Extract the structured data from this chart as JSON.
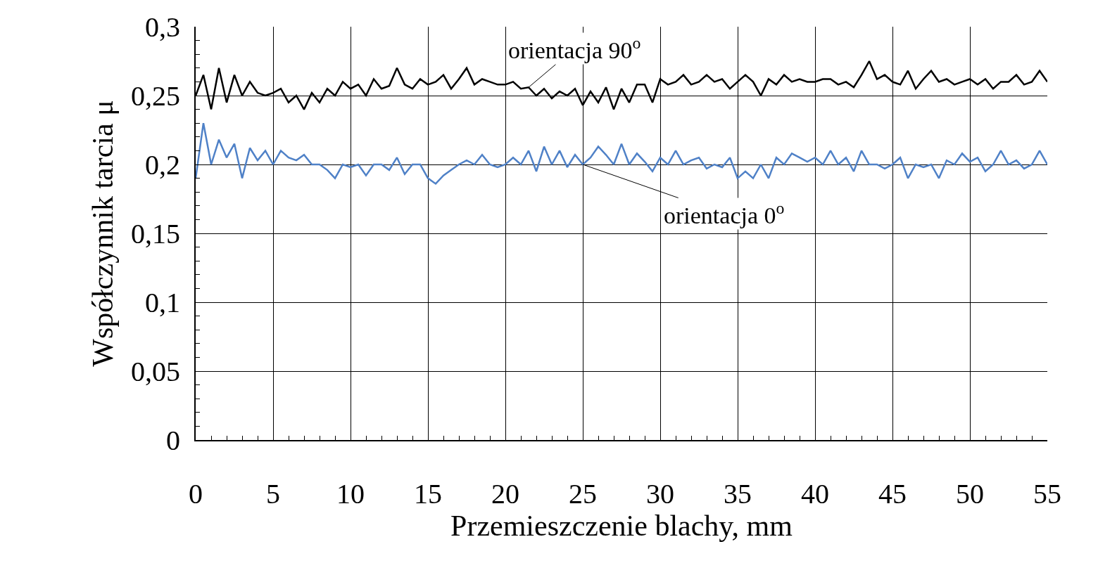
{
  "chart_data": {
    "type": "line",
    "xlabel": "Przemieszczenie blachy, mm",
    "ylabel": "Współczynnik tarcia μ",
    "x": [
      0,
      0.5,
      1,
      1.5,
      2,
      2.5,
      3,
      3.5,
      4,
      4.5,
      5,
      5.5,
      6,
      6.5,
      7,
      7.5,
      8,
      8.5,
      9,
      9.5,
      10,
      10.5,
      11,
      11.5,
      12,
      12.5,
      13,
      13.5,
      14,
      14.5,
      15,
      15.5,
      16,
      16.5,
      17,
      17.5,
      18,
      18.5,
      19,
      19.5,
      20,
      20.5,
      21,
      21.5,
      22,
      22.5,
      23,
      23.5,
      24,
      24.5,
      25,
      25.5,
      26,
      26.5,
      27,
      27.5,
      28,
      28.5,
      29,
      29.5,
      30,
      30.5,
      31,
      31.5,
      32,
      32.5,
      33,
      33.5,
      34,
      34.5,
      35,
      35.5,
      36,
      36.5,
      37,
      37.5,
      38,
      38.5,
      39,
      39.5,
      40,
      40.5,
      41,
      41.5,
      42,
      42.5,
      43,
      43.5,
      44,
      44.5,
      45,
      45.5,
      46,
      46.5,
      47,
      47.5,
      48,
      48.5,
      49,
      49.5,
      50,
      50.5,
      51,
      51.5,
      52,
      52.5,
      53,
      53.5,
      54,
      54.5,
      55
    ],
    "series": [
      {
        "color": "#000000",
        "values": [
          0.25,
          0.265,
          0.24,
          0.27,
          0.245,
          0.265,
          0.25,
          0.26,
          0.252,
          0.25,
          0.252,
          0.255,
          0.245,
          0.25,
          0.24,
          0.252,
          0.245,
          0.255,
          0.25,
          0.26,
          0.255,
          0.258,
          0.25,
          0.262,
          0.255,
          0.257,
          0.27,
          0.258,
          0.255,
          0.262,
          0.258,
          0.26,
          0.265,
          0.255,
          0.262,
          0.27,
          0.258,
          0.262,
          0.26,
          0.258,
          0.258,
          0.26,
          0.255,
          0.256,
          0.25,
          0.255,
          0.248,
          0.253,
          0.25,
          0.255,
          0.243,
          0.253,
          0.245,
          0.256,
          0.24,
          0.255,
          0.245,
          0.258,
          0.258,
          0.245,
          0.262,
          0.258,
          0.26,
          0.265,
          0.258,
          0.26,
          0.265,
          0.26,
          0.262,
          0.255,
          0.26,
          0.265,
          0.26,
          0.25,
          0.262,
          0.258,
          0.265,
          0.26,
          0.262,
          0.26,
          0.26,
          0.262,
          0.262,
          0.258,
          0.26,
          0.256,
          0.265,
          0.275,
          0.262,
          0.265,
          0.26,
          0.258,
          0.268,
          0.255,
          0.262,
          0.268,
          0.26,
          0.262,
          0.258,
          0.26,
          0.262,
          0.258,
          0.262,
          0.255,
          0.26,
          0.26,
          0.265,
          0.258,
          0.26,
          0.268,
          0.26
        ]
      },
      {
        "color": "#4f81c7",
        "values": [
          0.19,
          0.23,
          0.2,
          0.218,
          0.205,
          0.215,
          0.19,
          0.212,
          0.203,
          0.21,
          0.2,
          0.21,
          0.205,
          0.203,
          0.207,
          0.2,
          0.2,
          0.196,
          0.19,
          0.2,
          0.198,
          0.2,
          0.192,
          0.2,
          0.2,
          0.196,
          0.205,
          0.193,
          0.2,
          0.2,
          0.19,
          0.186,
          0.192,
          0.196,
          0.2,
          0.203,
          0.2,
          0.207,
          0.2,
          0.198,
          0.2,
          0.205,
          0.2,
          0.21,
          0.195,
          0.213,
          0.2,
          0.21,
          0.198,
          0.207,
          0.2,
          0.205,
          0.213,
          0.207,
          0.2,
          0.215,
          0.2,
          0.208,
          0.202,
          0.195,
          0.205,
          0.2,
          0.21,
          0.2,
          0.203,
          0.205,
          0.197,
          0.2,
          0.198,
          0.205,
          0.19,
          0.195,
          0.19,
          0.2,
          0.19,
          0.205,
          0.2,
          0.208,
          0.205,
          0.202,
          0.205,
          0.2,
          0.21,
          0.2,
          0.205,
          0.195,
          0.21,
          0.2,
          0.2,
          0.197,
          0.2,
          0.205,
          0.19,
          0.2,
          0.198,
          0.2,
          0.19,
          0.203,
          0.2,
          0.208,
          0.202,
          0.205,
          0.195,
          0.2,
          0.21,
          0.2,
          0.203,
          0.197,
          0.2,
          0.21,
          0.2
        ]
      }
    ],
    "annotations": [
      {
        "text": "orientacja 90$^{o}$",
        "x": 21.5,
        "y": 0.256
      },
      {
        "text": "orientacja 0$^{o}$",
        "x": 25,
        "y": 0.2
      }
    ],
    "xlim": [
      0,
      55
    ],
    "xticks": [
      0,
      5,
      10,
      15,
      20,
      25,
      30,
      35,
      40,
      45,
      50,
      55
    ],
    "ylim": [
      0,
      0.3
    ],
    "yticks": [
      0,
      {
        "value": 0.05,
        "label": "0,05"
      },
      {
        "value": 0.1,
        "label": "0,1"
      },
      {
        "value": 0.15,
        "label": "0,15"
      },
      {
        "value": 0.2,
        "label": "0,2"
      },
      {
        "value": 0.25,
        "label": "0,25"
      },
      {
        "value": 0.3,
        "label": "0,3"
      }
    ],
    "grid": true,
    "marker": "none",
    "line_style": "solid"
  }
}
